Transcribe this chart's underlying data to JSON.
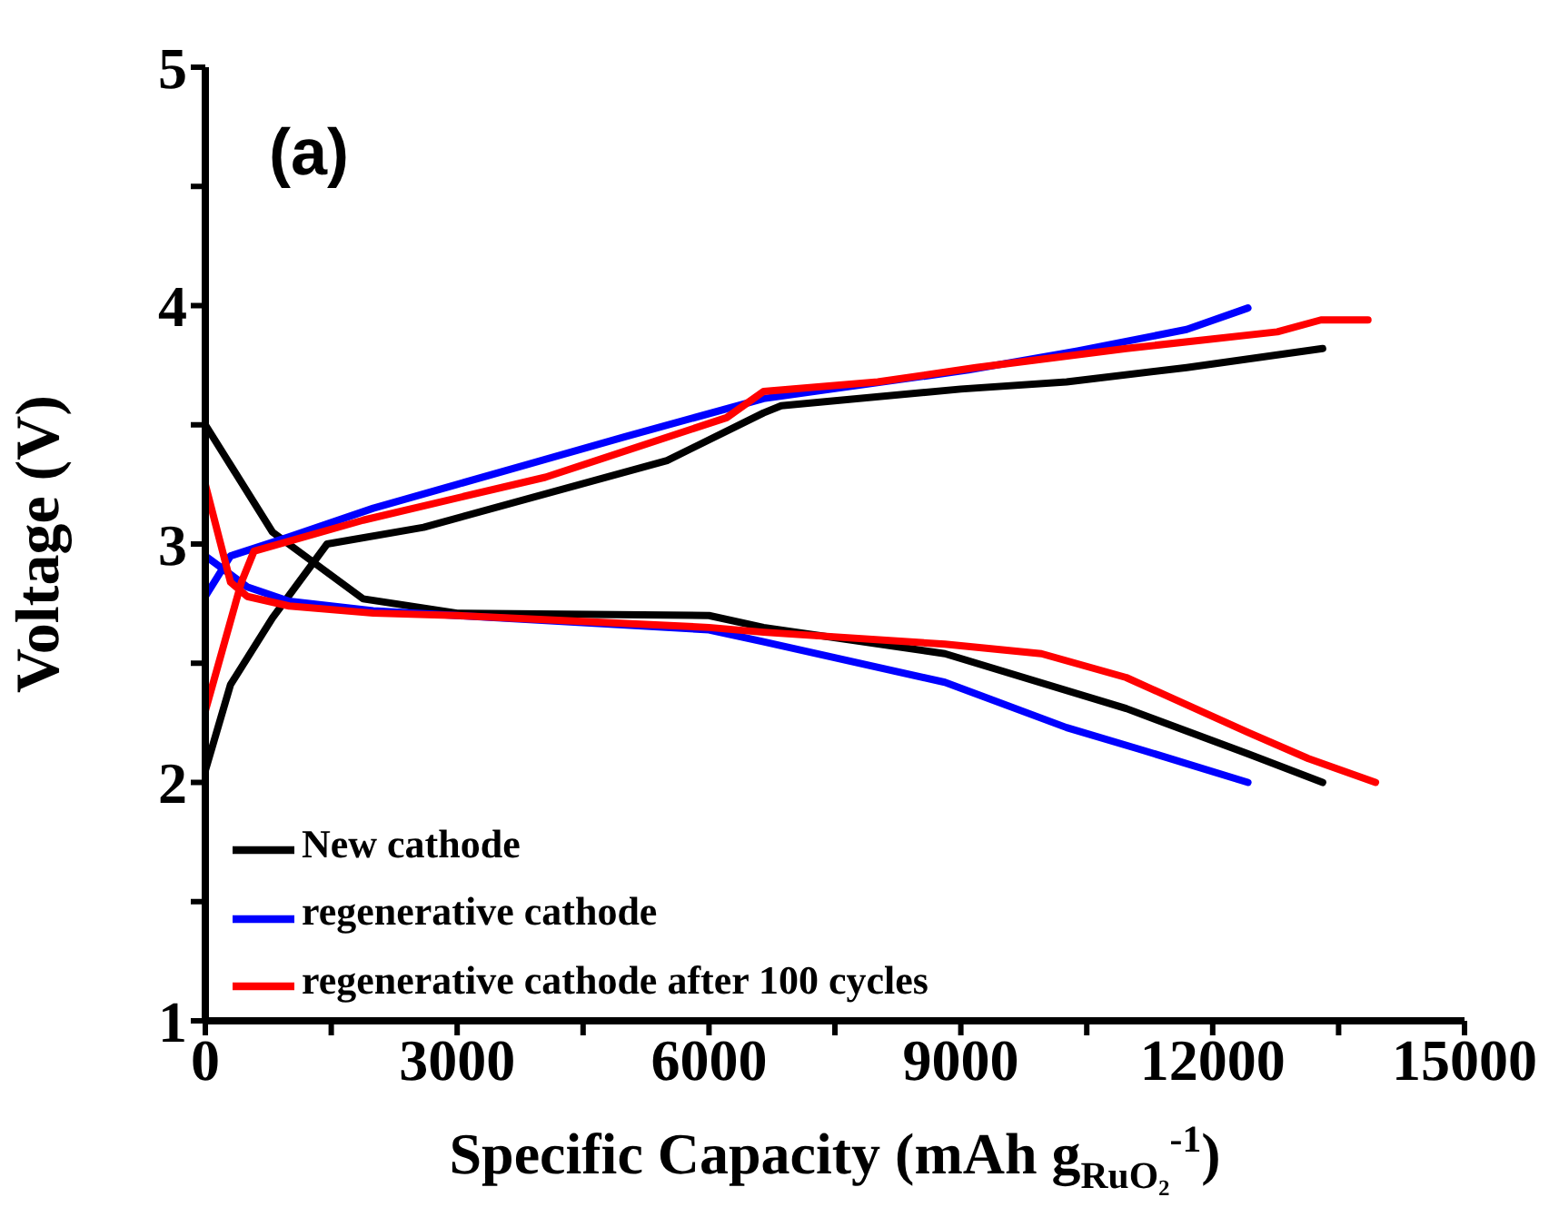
{
  "chart_data": {
    "type": "line",
    "xlabel": "Specific Capacity (mAh g$_{RuO₂}$$^{-1}$)",
    "ylabel": "Voltage (V)",
    "annotations": [
      "(a)"
    ],
    "xlim": [
      0,
      15000
    ],
    "xticks": [
      0,
      {
        "value": 1500,
        "label": null
      },
      3000,
      {
        "value": 4500,
        "label": null
      },
      6000,
      {
        "value": 7500,
        "label": null
      },
      9000,
      {
        "value": 10500,
        "label": null
      },
      12000,
      {
        "value": 13500,
        "label": null
      },
      15000
    ],
    "ylim": [
      1,
      5
    ],
    "yticks": [
      1,
      {
        "value": 1.5,
        "label": null
      },
      2,
      {
        "value": 2.5,
        "label": null
      },
      3,
      {
        "value": 3.5,
        "label": null
      },
      4,
      {
        "value": 4.5,
        "label": null
      },
      5
    ],
    "grid": false,
    "legend": "bottom left",
    "marker": "none",
    "line_style": "solid",
    "series": [
      {
        "name": "New cathode",
        "color": "#000000",
        "x": [
          0,
          800,
          1880,
          3000,
          6000,
          6650,
          8810,
          10970,
          12420,
          13310,
          null,
          0,
          300,
          800,
          1450,
          2600,
          5500,
          6650,
          6860,
          9000,
          10260,
          11690,
          13310
        ],
        "values": [
          3.5,
          3.05,
          2.77,
          2.71,
          2.7,
          2.65,
          2.54,
          2.31,
          2.12,
          2.0,
          null,
          2.05,
          2.41,
          2.69,
          3.0,
          3.07,
          3.35,
          3.55,
          3.58,
          3.65,
          3.68,
          3.74,
          3.82
        ]
      },
      {
        "name": "regenerative cathode",
        "color": "#0000ff",
        "x": [
          0,
          500,
          1000,
          2000,
          3000,
          6000,
          6650,
          8810,
          10260,
          11120,
          12420,
          null,
          0,
          300,
          1000,
          2000,
          3000,
          5000,
          6650,
          9090,
          10390,
          11690,
          12420
        ],
        "values": [
          2.95,
          2.82,
          2.76,
          2.72,
          2.7,
          2.64,
          2.59,
          2.42,
          2.23,
          2.14,
          2.0,
          null,
          2.78,
          2.95,
          3.03,
          3.15,
          3.25,
          3.45,
          3.61,
          3.73,
          3.81,
          3.9,
          3.99
        ]
      },
      {
        "name": "regenerative cathode after 100 cycles",
        "color": "#ff0000",
        "x": [
          0,
          300,
          500,
          1000,
          2000,
          3000,
          6000,
          6650,
          8810,
          9960,
          10970,
          12420,
          13140,
          13940,
          null,
          0,
          430,
          580,
          1880,
          4050,
          6210,
          6650,
          8010,
          9180,
          10970,
          12770,
          13290,
          13850
        ],
        "values": [
          3.25,
          2.84,
          2.78,
          2.74,
          2.71,
          2.7,
          2.65,
          2.63,
          2.58,
          2.54,
          2.44,
          2.21,
          2.1,
          2.0,
          null,
          2.3,
          2.84,
          2.97,
          3.1,
          3.28,
          3.53,
          3.64,
          3.68,
          3.74,
          3.82,
          3.89,
          3.94,
          3.94
        ]
      }
    ]
  }
}
